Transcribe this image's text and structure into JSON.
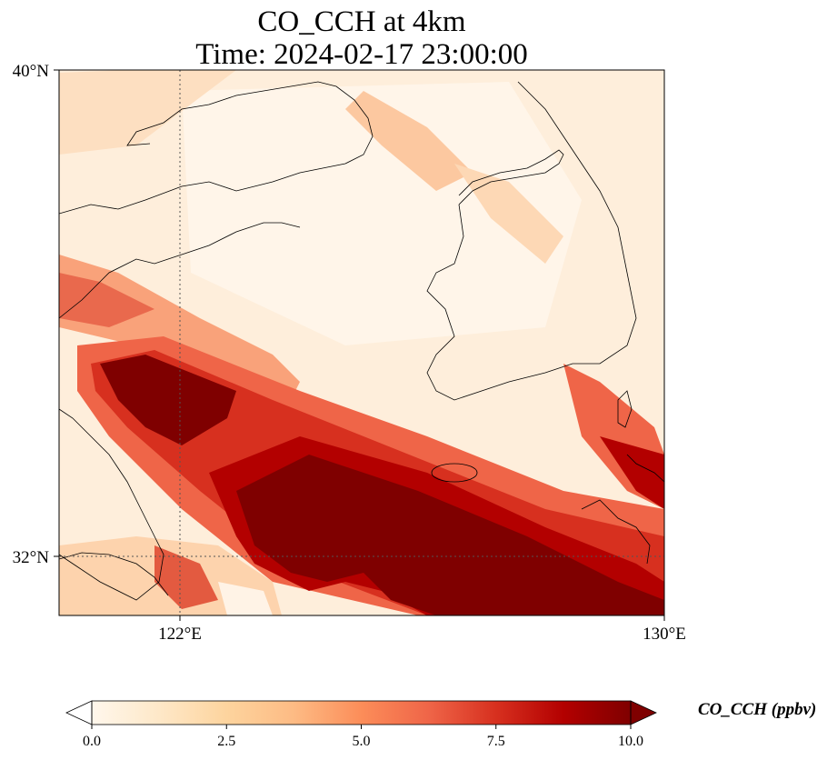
{
  "title_line1": "CO_CCH at 4km",
  "title_line2": "Time: 2024-02-17 23:00:00",
  "colorbar": {
    "title": "CO_CCH (ppbv)",
    "ticks": [
      "0.0",
      "2.5",
      "5.0",
      "7.5",
      "10.0"
    ],
    "min": 0,
    "max": 10,
    "colormap": [
      "#fff7ec",
      "#fee8c8",
      "#fdd49e",
      "#fdbb84",
      "#fc8d59",
      "#ef6548",
      "#d7301f",
      "#b30000",
      "#7f0000"
    ]
  },
  "map": {
    "lat_ticks": [
      "40°N",
      "32°N"
    ],
    "lon_ticks": [
      "122°E",
      "130°E"
    ],
    "gridlines": "dotted",
    "coastline_color": "#000000"
  }
}
